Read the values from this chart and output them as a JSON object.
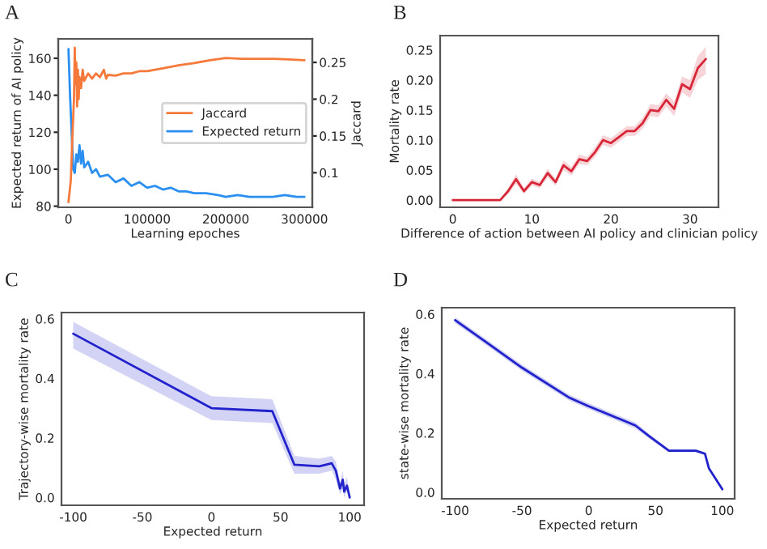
{
  "chart_data": [
    {
      "type": "line",
      "title": "A",
      "xlabel": "Learning epoches",
      "ylabel": "Expected return of AI policy",
      "y2label": "Jaccard",
      "xlim": [
        -13000,
        310000
      ],
      "xticks": [
        0,
        100000,
        200000,
        300000
      ],
      "ylim": [
        79.4,
        170.5
      ],
      "yticks": [
        80,
        100,
        120,
        140,
        160
      ],
      "y2lim": [
        0.053,
        0.282
      ],
      "y2ticks": [
        0.1,
        0.15,
        0.2,
        0.25
      ],
      "grid": false,
      "legend": "right",
      "series": [
        {
          "name": "Jaccard",
          "color": "#f5793a",
          "axis": "y2",
          "x": [
            0,
            3000,
            5000,
            7000,
            8000,
            9000,
            10000,
            11000,
            12000,
            13000,
            14000,
            16000,
            18000,
            20000,
            25000,
            30000,
            35000,
            40000,
            45000,
            48000,
            50000,
            60000,
            70000,
            80000,
            90000,
            100000,
            120000,
            140000,
            160000,
            180000,
            200000,
            220000,
            240000,
            260000,
            280000,
            300000
          ],
          "values": [
            0.06,
            0.09,
            0.15,
            0.2,
            0.27,
            0.22,
            0.25,
            0.19,
            0.24,
            0.2,
            0.23,
            0.215,
            0.24,
            0.225,
            0.235,
            0.228,
            0.235,
            0.23,
            0.24,
            0.228,
            0.233,
            0.232,
            0.235,
            0.235,
            0.238,
            0.238,
            0.242,
            0.246,
            0.249,
            0.253,
            0.256,
            0.255,
            0.255,
            0.255,
            0.254,
            0.253
          ]
        },
        {
          "name": "Expected return",
          "color": "#2a8ff0",
          "x": [
            0,
            2000,
            4000,
            6000,
            8000,
            10000,
            12000,
            14000,
            16000,
            18000,
            20000,
            25000,
            30000,
            35000,
            40000,
            50000,
            60000,
            70000,
            80000,
            90000,
            100000,
            110000,
            120000,
            130000,
            140000,
            150000,
            160000,
            175000,
            190000,
            200000,
            215000,
            230000,
            245000,
            260000,
            275000,
            290000,
            300000
          ],
          "values": [
            165,
            140,
            120,
            100,
            98,
            108,
            104,
            113,
            103,
            110,
            101,
            104,
            98,
            100,
            96,
            97,
            93,
            95,
            91,
            93,
            90,
            91,
            89,
            90,
            88,
            88,
            87,
            87,
            86,
            85,
            86,
            85,
            85,
            85,
            86,
            85,
            85
          ]
        }
      ]
    },
    {
      "type": "line",
      "title": "B",
      "xlabel": "Difference of action between AI policy and clinician policy",
      "ylabel": "Mortality rate",
      "xlim": [
        -1.6,
        33.6
      ],
      "xticks": [
        0,
        10,
        20,
        30
      ],
      "ylim": [
        -0.012,
        0.274
      ],
      "yticks": [
        {
          "value": 0,
          "label": "0.00"
        },
        0.05,
        {
          "value": 0.1,
          "label": "0.10"
        },
        0.15,
        {
          "value": 0.2,
          "label": "0.20"
        },
        0.25
      ],
      "grid": false,
      "series": [
        {
          "color": "#d62638",
          "x": [
            0,
            1,
            2,
            3,
            4,
            5,
            6,
            7,
            8,
            9,
            10,
            11,
            12,
            13,
            14,
            15,
            16,
            17,
            18,
            19,
            20,
            21,
            22,
            23,
            24,
            25,
            26,
            27,
            28,
            29,
            30,
            31,
            32
          ],
          "values": [
            0,
            0,
            0,
            0,
            0,
            0,
            0,
            0.015,
            0.035,
            0.015,
            0.03,
            0.025,
            0.045,
            0.03,
            0.058,
            0.048,
            0.068,
            0.065,
            0.08,
            0.1,
            0.095,
            0.105,
            0.115,
            0.115,
            0.128,
            0.15,
            0.148,
            0.167,
            0.152,
            0.193,
            0.185,
            0.22,
            0.235
          ],
          "lower": [
            0,
            0,
            0,
            0,
            0,
            0,
            0,
            0.01,
            0.027,
            0.01,
            0.024,
            0.02,
            0.038,
            0.024,
            0.05,
            0.041,
            0.06,
            0.058,
            0.072,
            0.092,
            0.087,
            0.097,
            0.107,
            0.107,
            0.119,
            0.14,
            0.138,
            0.156,
            0.14,
            0.18,
            0.17,
            0.2,
            0.21
          ],
          "upper": [
            0,
            0,
            0,
            0,
            0,
            0,
            0,
            0.02,
            0.043,
            0.02,
            0.036,
            0.03,
            0.052,
            0.036,
            0.066,
            0.055,
            0.076,
            0.072,
            0.088,
            0.108,
            0.103,
            0.113,
            0.123,
            0.123,
            0.137,
            0.16,
            0.158,
            0.178,
            0.164,
            0.206,
            0.2,
            0.24,
            0.255
          ]
        }
      ]
    },
    {
      "type": "line",
      "title": "C",
      "xlabel": "Expected return",
      "ylabel": "Trajectory-wise mortality rate",
      "xlim": [
        -108.5,
        110.4
      ],
      "xticks": [
        -100,
        -50,
        0,
        50,
        100
      ],
      "ylim": [
        -0.026,
        0.621
      ],
      "yticks": [
        {
          "value": 0,
          "label": "0.0"
        },
        0.2,
        0.4,
        0.6
      ],
      "grid": false,
      "series": [
        {
          "color": "#2222cc",
          "x": [
            -100,
            0,
            44,
            60,
            78,
            87,
            90,
            93,
            95,
            96,
            98,
            100
          ],
          "values": [
            0.55,
            0.3,
            0.29,
            0.11,
            0.105,
            0.115,
            0.09,
            0.03,
            0.06,
            0.02,
            0.04,
            0.0
          ],
          "lower": [
            0.5,
            0.26,
            0.25,
            0.08,
            0.08,
            0.09,
            0.06,
            0.01,
            0.03,
            0.0,
            0.02,
            0.0
          ],
          "upper": [
            0.59,
            0.34,
            0.33,
            0.14,
            0.13,
            0.14,
            0.12,
            0.05,
            0.09,
            0.04,
            0.07,
            0.01
          ]
        }
      ]
    },
    {
      "type": "line",
      "title": "D",
      "xlabel": "Expected return",
      "ylabel": "state-wise mortality rate",
      "xlim": [
        -110,
        109.2
      ],
      "xticks": [
        -100,
        -50,
        0,
        50,
        100
      ],
      "ylim": [
        -0.022,
        0.622
      ],
      "yticks": [
        {
          "value": 0,
          "label": "0.0"
        },
        0.2,
        0.4,
        0.6
      ],
      "grid": false,
      "series": [
        {
          "color": "#2222cc",
          "x": [
            -100,
            -75,
            -50,
            -15,
            0,
            35,
            45,
            60,
            80,
            87,
            90,
            100
          ],
          "values": [
            0.58,
            0.5,
            0.42,
            0.32,
            0.29,
            0.225,
            0.19,
            0.14,
            0.14,
            0.13,
            0.08,
            0.01
          ],
          "lower": [
            0.57,
            0.49,
            0.41,
            0.31,
            0.28,
            0.215,
            0.182,
            0.135,
            0.135,
            0.125,
            0.075,
            0.005
          ],
          "upper": [
            0.59,
            0.51,
            0.43,
            0.33,
            0.3,
            0.235,
            0.198,
            0.145,
            0.145,
            0.135,
            0.085,
            0.015
          ]
        }
      ]
    }
  ]
}
